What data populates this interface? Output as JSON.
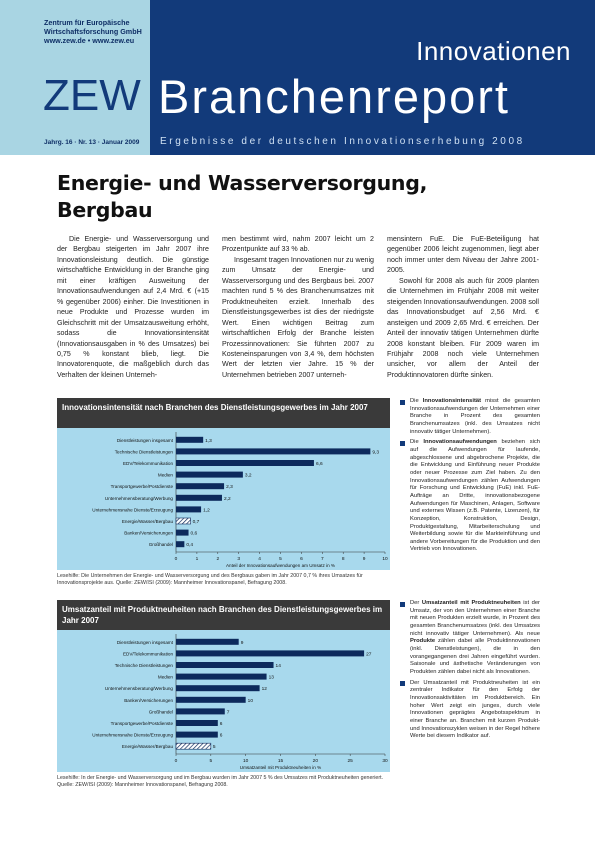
{
  "header": {
    "institute_lines": [
      "Zentrum für Europäische",
      "Wirtschaftsforschung GmbH",
      "www.zew.de • www.zew.eu"
    ],
    "logo": "ZEW",
    "title_top": "Innovationen",
    "title_main": "Branchenreport",
    "issue": "Jahrg. 16 · Nr. 13 · Januar 2009",
    "subtitle": "Ergebnisse der deutschen Innovationserhebung 2008",
    "colors": {
      "light_blue": "#a9d5e3",
      "dark_blue": "#123a7a"
    }
  },
  "article": {
    "title_line1": "Energie- und Wasserversorgung,",
    "title_line2": "Bergbau",
    "col1": "Die Energie- und Wasserversorgung und der Bergbau steigerten im Jahr 2007 ihre Innovationsleistung deutlich. Die günstige wirtschaftliche Entwicklung in der Branche ging mit einer kräftigen Ausweitung der Innovationsaufwendungen auf 2,4 Mrd. € (+15 % gegenüber 2006) einher. Die Investitionen in neue Produkte und Prozesse wurden im Gleichschritt mit der Umsatzausweitung erhöht, sodass die Innovationsintensität (Innovationsausgaben in % des Umsatzes) bei 0,75 % konstant blieb, liegt. Die Innovatorenquote, die maßgeblich durch das Verhalten der kleinen Unterneh-",
    "col2_p1": "men bestimmt wird, nahm 2007 leicht um 2 Prozentpunkte auf 33 % ab.",
    "col2_p2": "Insgesamt tragen Innovationen nur zu wenig zum Umsatz der Energie- und Wasserversorgung und des Bergbaus bei. 2007 machten rund 5 % des Branchenumsatzes mit Produktneuheiten erzielt. Innerhalb des Dienstleistungsgewerbes ist dies der niedrigste Wert. Einen wichtigen Beitrag zum wirtschaftlichen Erfolg der Branche leisten Prozessinnovationen: Sie führten 2007 zu Kosteneinsparungen von 3,4 %, dem höchsten Wert der letzten vier Jahre. 15 % der Unternehmen betrieben 2007 unterneh-",
    "col3_p1": "mensintern FuE. Die FuE-Beteiligung hat gegenüber 2006 leicht zugenommen, liegt aber noch immer unter dem Niveau der Jahre 2001-2005.",
    "col3_p2": "Sowohl für 2008 als auch für 2009 planten die Unternehmen im Frühjahr 2008 mit weiter steigenden Innovationsaufwendungen. 2008 soll das Innovationsbudget auf 2,56 Mrd. € ansteigen und 2009 2,65 Mrd. € erreichen. Der Anteil der innovativ tätigen Unternehmen dürfte 2008 konstant bleiben. Für 2009 waren im Frühjahr 2008 noch viele Unternehmen unsicher, vor allem der Anteil der Produktinnovatoren dürfte sinken."
  },
  "chart1": {
    "title": "Innovationsintensität nach Branchen des Dienstleistungsgewerbes im Jahr 2007",
    "caption": "Lesehilfe: Die Unternehmen der Energie- und Wasserversorgung und des Bergbaus gaben im Jahr 2007 0,7 % ihres Umsatzes für Innovationsprojekte aus. Quelle: ZEW/ISI (2009): Mannheimer Innovationspanel, Befragung 2008.",
    "side_note_term": "Innovationsintensität",
    "side_note_text": " misst die gesamten Innovationsaufwendungen der Unternehmen einer Branche in Prozent des gesamten Branchenumsatzes (inkl. des Umsatzes nicht innovativ tätiger Unternehmen).",
    "side_note2_term": "Innovationsaufwendungen",
    "side_note2_text": " beziehen sich auf die Aufwendungen für laufende, abgeschlossene und abgebrochene Projekte, die die Entwicklung und Einführung neuer Produkte oder neuer Prozesse zum Ziel haben. Zu den Innovationsaufwendungen zählen Aufwendungen für Forschung und Entwicklung (FuE) inkl. FuE-Aufträge an Dritte, innovationsbezogene Aufwendungen für Maschinen, Anlagen, Software und externes Wissen (z.B. Patente, Lizenzen), für Konzeption, Konstruktion, Design, Produktgestaltung, Mitarbeiterschulung und Weiterbildung sowie für die Markteinführung und andere Vorbereitungen für die Produktion und den Vertrieb von Innovationen."
  },
  "chart2": {
    "title": "Umsatzanteil mit Produktneuheiten nach Branchen des Dienstleistungsgewerbes im Jahr 2007",
    "caption": "Lesehilfe: In der Energie- und Wasserversorgung und im Bergbau wurden im Jahr 2007 5 % des Umsatzes mit Produktneuheiten generiert. Quelle: ZEW/ISI (2009): Mannheimer Innovationspanel, Befragung 2008.",
    "side_note_parts": [
      "Der ",
      "Umsatzanteil mit Produktneuheiten",
      " ist der Umsatz, der von den Unternehmen einer Branche mit neuen Produkten erzielt wurde, in Prozent des gesamten Branchenumsatzes (inkl. des Umsatzes nicht innovativ tätiger Unternehmen). Als neue ",
      "Produkte",
      " zählen dabei alle Produktinnovationen (inkl. Dienstleistungen), die in den vorangegangenen drei Jahren eingeführt wurden. Saisonale und ästhetische Veränderungen von Produkten zählen dabei nicht als Innovationen."
    ],
    "side_note2": "Der Umsatzanteil mit Produktneuheiten ist ein zentraler Indikator für den Erfolg der Innovationsaktivitäten im Produktbereich. Ein hoher Wert zeigt ein junges, durch viele Innovationen geprägtes Angebotsspektrum in einer Branche an. Branchen mit kurzen Produkt- und Innovationszyklen weisen in der Regel höhere Werte bei diesem Indikator auf."
  },
  "chart_data": [
    {
      "type": "bar",
      "orientation": "horizontal",
      "categories": [
        "Dienstleistungen insgesamt",
        "Technische Dienstleistungen",
        "EDV/Telekommunikation",
        "Medien",
        "Transportgewerbe/Postdienste",
        "Unternehmensberatung/Werbung",
        "Unternehmensnahe Dienste/Erzeugung",
        "Energie/Wasser/Bergbau",
        "Banken/Versicherungen",
        "Großhandel"
      ],
      "values": [
        1.3,
        9.3,
        6.6,
        3.2,
        2.3,
        2.2,
        1.2,
        0.7,
        0.6,
        0.4
      ],
      "value_labels": [
        "1,3",
        "9,3",
        "6,6",
        "3,2",
        "2,3",
        "2,2",
        "1,2",
        "0,7",
        "0,6",
        "0,4"
      ],
      "highlight_index": 7,
      "xlabel": "Anteil der Innovationsaufwendungen am Umsatz in %",
      "xlim": [
        0,
        10
      ],
      "xticks": [
        0,
        1,
        2,
        3,
        4,
        5,
        6,
        7,
        8,
        9,
        10
      ],
      "colors": {
        "bar": "#0d2a5c",
        "background": "#a8d9ed"
      }
    },
    {
      "type": "bar",
      "orientation": "horizontal",
      "categories": [
        "Dienstleistungen insgesamt",
        "EDV/Telekommunikation",
        "Technische Dienstleistungen",
        "Medien",
        "Unternehmensberatung/Werbung",
        "Banken/Versicherungen",
        "Großhandel",
        "Transportgewerbe/Postdienste",
        "Unternehmensnahe Dienste/Erzeugung",
        "Energie/Wasser/Bergbau"
      ],
      "values": [
        9,
        27,
        14,
        13,
        12,
        10,
        7,
        6,
        6,
        5
      ],
      "value_labels": [
        "9",
        "27",
        "14",
        "13",
        "12",
        "10",
        "7",
        "6",
        "6",
        "5"
      ],
      "highlight_index": 9,
      "xlabel": "Umsatzanteil mit Produktneuheiten in %",
      "xlim": [
        0,
        30
      ],
      "xticks": [
        0,
        5,
        10,
        15,
        20,
        25,
        30
      ],
      "colors": {
        "bar": "#0d2a5c",
        "background": "#a8d9ed"
      }
    }
  ]
}
